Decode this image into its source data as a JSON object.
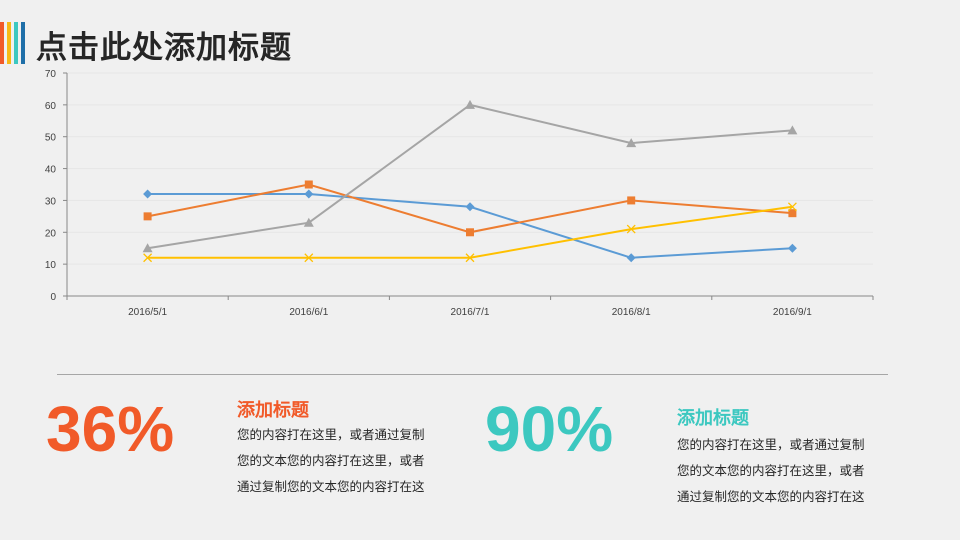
{
  "header": {
    "title": "点击此处添加标题",
    "accent_colors": [
      "#f15a29",
      "#f7b916",
      "#3cc8c0",
      "#1f6fa8"
    ]
  },
  "chart_data": {
    "type": "line",
    "categories": [
      "2016/5/1",
      "2016/6/1",
      "2016/7/1",
      "2016/8/1",
      "2016/9/1"
    ],
    "ylim": [
      0,
      70
    ],
    "yticks": [
      0,
      10,
      20,
      30,
      40,
      50,
      60,
      70
    ],
    "grid": true,
    "series": [
      {
        "values": [
          32,
          32,
          28,
          12,
          15
        ],
        "color": "#5b9bd5",
        "marker": "diamond"
      },
      {
        "values": [
          25,
          35,
          20,
          30,
          26
        ],
        "color": "#ed7d31",
        "marker": "square"
      },
      {
        "values": [
          15,
          23,
          60,
          48,
          52
        ],
        "color": "#a5a5a5",
        "marker": "triangle"
      },
      {
        "values": [
          12,
          12,
          12,
          21,
          28
        ],
        "color": "#ffc000",
        "marker": "x"
      }
    ]
  },
  "stats": [
    {
      "value": "36%",
      "heading": "添加标题",
      "color": "#f15a29",
      "lines": [
        "您的内容打在这里，或者通过复制",
        "您的文本您的内容打在这里，或者",
        "通过复制您的文本您的内容打在这"
      ]
    },
    {
      "value": "90%",
      "heading": "添加标题",
      "color": "#3cc8c0",
      "lines": [
        "您的内容打在这里，或者通过复制",
        "您的文本您的内容打在这里，或者",
        "通过复制您的文本您的内容打在这"
      ]
    }
  ]
}
